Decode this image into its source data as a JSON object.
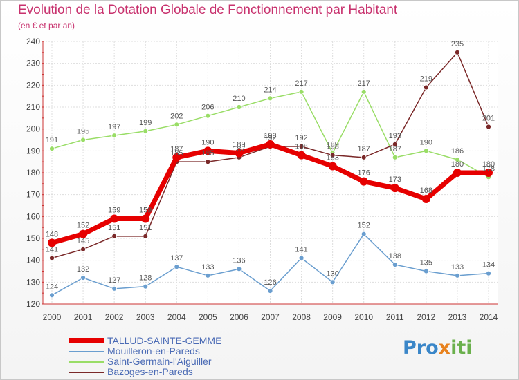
{
  "chart_data": {
    "type": "line",
    "title": "Evolution de la Dotation Globale de Fonctionnement par Habitant",
    "subtitle": "(en € et par an)",
    "x": [
      "2000",
      "2001",
      "2002",
      "2003",
      "2004",
      "2005",
      "2006",
      "2007",
      "2008",
      "2009",
      "2010",
      "2011",
      "2012",
      "2013",
      "2014"
    ],
    "ylim": [
      120,
      240
    ],
    "yticks": [
      120,
      130,
      140,
      150,
      160,
      170,
      180,
      190,
      200,
      210,
      220,
      230,
      240
    ],
    "grid": true,
    "series": [
      {
        "name": "TALLUD-SAINTE-GEMME",
        "color": "#e60000",
        "values": [
          148,
          152,
          159,
          159,
          187,
          190,
          189,
          193,
          188,
          183,
          176,
          173,
          168,
          180,
          180
        ],
        "labels": [
          "148",
          "152",
          "159",
          "159",
          "187",
          "190",
          "189",
          "193",
          "188",
          "183",
          "176",
          "173",
          "168",
          "180",
          "180"
        ]
      },
      {
        "name": "Mouilleron-en-Pareds",
        "color": "#6a9ecf",
        "values": [
          124,
          132,
          127,
          128,
          137,
          133,
          136,
          126,
          141,
          130,
          152,
          138,
          135,
          133,
          134
        ],
        "labels": [
          "124",
          "132",
          "127",
          "128",
          "137",
          "133",
          "136",
          "126",
          "141",
          "130",
          "152",
          "138",
          "135",
          "133",
          "134"
        ]
      },
      {
        "name": "Saint-Germain-l'Aiguiller",
        "color": "#99dd66",
        "values": [
          191,
          195,
          197,
          199,
          202,
          206,
          210,
          214,
          217,
          189,
          217,
          187,
          190,
          186,
          178
        ],
        "labels": [
          "191",
          "195",
          "197",
          "199",
          "202",
          "206",
          "210",
          "214",
          "217",
          "189",
          "217",
          "187",
          "190",
          "186",
          "178"
        ]
      },
      {
        "name": "Bazoges-en-Pareds",
        "color": "#7a2828",
        "values": [
          141,
          145,
          151,
          151,
          185,
          185,
          187,
          192,
          192,
          188,
          187,
          193,
          219,
          235,
          201
        ],
        "labels": [
          "141",
          "145",
          "151",
          "151",
          "185",
          "185",
          "187",
          "192",
          "192",
          "188",
          "187",
          "193",
          "219",
          "235",
          "201"
        ]
      }
    ]
  },
  "logo": {
    "text1": "Pro",
    "text2": "x",
    "text3": "iti"
  }
}
